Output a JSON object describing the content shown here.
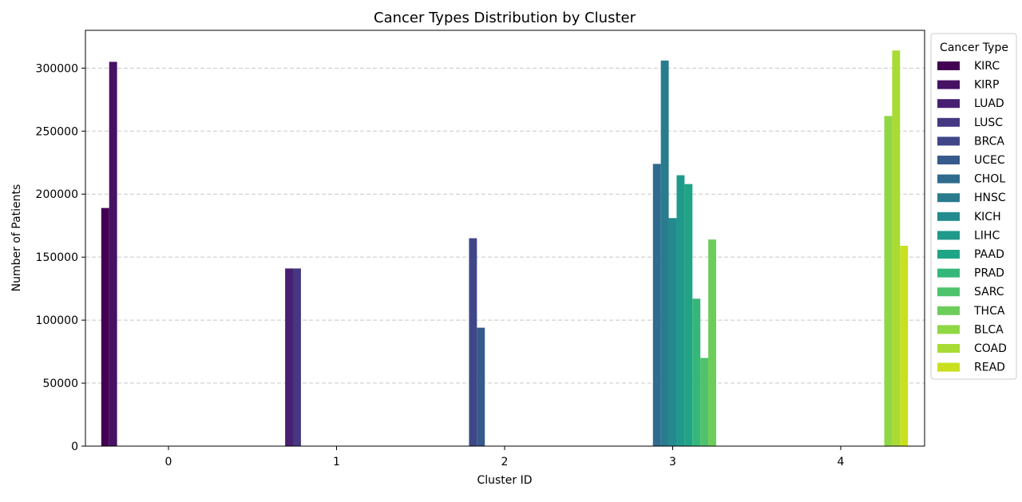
{
  "chart_data": {
    "type": "bar",
    "title": "Cancer Types Distribution by Cluster",
    "xlabel": "Cluster ID",
    "ylabel": "Number of Patients",
    "ylim": [
      0,
      330000
    ],
    "yticks": [
      0,
      50000,
      100000,
      150000,
      200000,
      250000,
      300000
    ],
    "categories": [
      "0",
      "1",
      "2",
      "3",
      "4"
    ],
    "grid": "horizontal dashed",
    "legend": {
      "title": "Cancer Type",
      "placement": "outside-right"
    },
    "series": [
      {
        "name": "KIRC",
        "color": "#440154",
        "values": [
          189000,
          0,
          0,
          0,
          0
        ]
      },
      {
        "name": "KIRP",
        "color": "#471164",
        "values": [
          305000,
          0,
          0,
          0,
          0
        ]
      },
      {
        "name": "LUAD",
        "color": "#482071",
        "values": [
          0,
          141000,
          0,
          0,
          0
        ]
      },
      {
        "name": "LUSC",
        "color": "#453781",
        "values": [
          0,
          141000,
          0,
          0,
          0
        ]
      },
      {
        "name": "BRCA",
        "color": "#3f4788",
        "values": [
          0,
          0,
          165000,
          0,
          0
        ]
      },
      {
        "name": "UCEC",
        "color": "#375a8c",
        "values": [
          0,
          0,
          94000,
          0,
          0
        ]
      },
      {
        "name": "CHOL",
        "color": "#2f6b8e",
        "values": [
          0,
          0,
          0,
          224000,
          0
        ]
      },
      {
        "name": "HNSC",
        "color": "#287c8e",
        "values": [
          0,
          0,
          0,
          306000,
          0
        ]
      },
      {
        "name": "KICH",
        "color": "#238a8d",
        "values": [
          0,
          0,
          0,
          181000,
          0
        ]
      },
      {
        "name": "LIHC",
        "color": "#1f9a8a",
        "values": [
          0,
          0,
          0,
          215000,
          0
        ]
      },
      {
        "name": "PAAD",
        "color": "#20a486",
        "values": [
          0,
          0,
          0,
          208000,
          0
        ]
      },
      {
        "name": "PRAD",
        "color": "#35b779",
        "values": [
          0,
          0,
          0,
          117000,
          0
        ]
      },
      {
        "name": "SARC",
        "color": "#4ec36b",
        "values": [
          0,
          0,
          0,
          70000,
          0
        ]
      },
      {
        "name": "THCA",
        "color": "#6ccd5a",
        "values": [
          0,
          0,
          0,
          164000,
          0
        ]
      },
      {
        "name": "BLCA",
        "color": "#8fd744",
        "values": [
          0,
          0,
          0,
          0,
          262000
        ]
      },
      {
        "name": "COAD",
        "color": "#a8db34",
        "values": [
          0,
          0,
          0,
          0,
          314000
        ]
      },
      {
        "name": "READ",
        "color": "#c8e020",
        "values": [
          0,
          0,
          0,
          0,
          159000
        ]
      }
    ]
  }
}
